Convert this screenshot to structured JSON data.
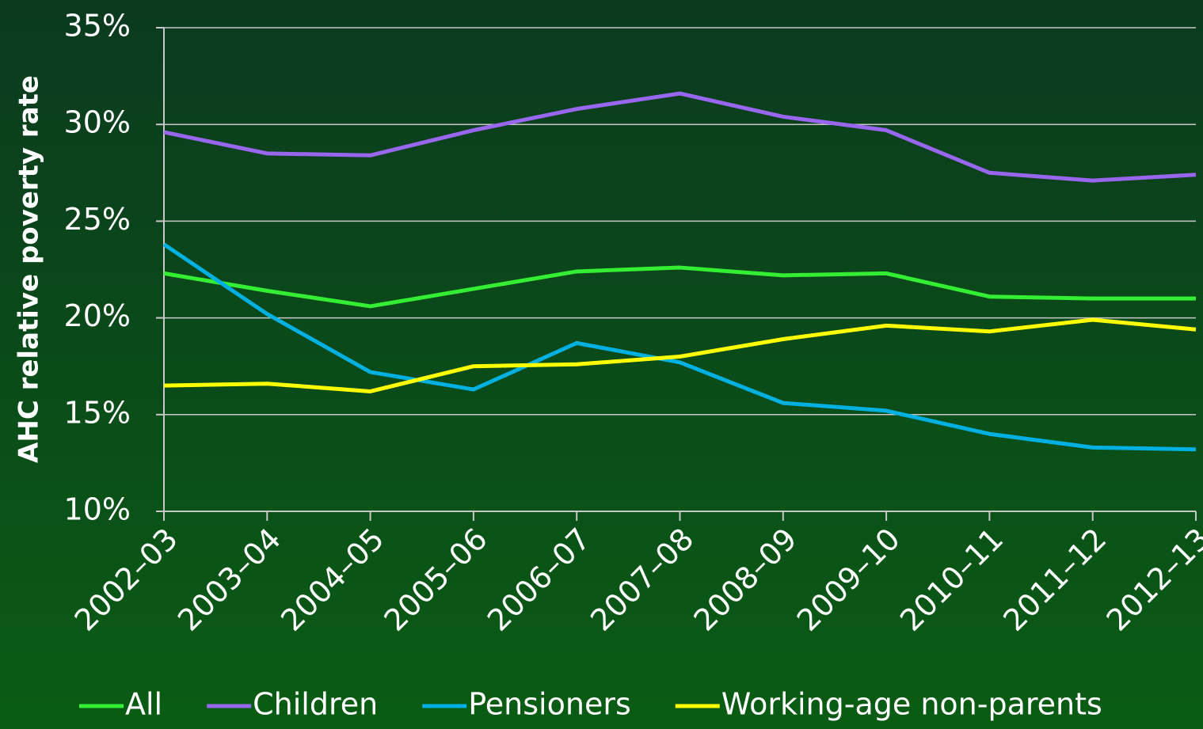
{
  "chart_data": {
    "type": "line",
    "y_label": "AHC relative poverty rate",
    "categories": [
      "2002–03",
      "2003–04",
      "2004–05",
      "2005–06",
      "2006–07",
      "2007–08",
      "2008–09",
      "2009–10",
      "2010–11",
      "2011–12",
      "2012–13"
    ],
    "series": [
      {
        "name": "All",
        "color": "#33ee33",
        "values": [
          22.3,
          21.4,
          20.6,
          21.5,
          22.4,
          22.6,
          22.2,
          22.3,
          21.1,
          21.0,
          21.0
        ]
      },
      {
        "name": "Children",
        "color": "#9966ee",
        "values": [
          29.6,
          28.5,
          28.4,
          29.7,
          30.8,
          31.6,
          30.4,
          29.7,
          27.5,
          27.1,
          27.4
        ]
      },
      {
        "name": "Pensioners",
        "color": "#00b0e0",
        "values": [
          23.8,
          20.2,
          17.2,
          16.3,
          18.7,
          17.7,
          15.6,
          15.2,
          14.0,
          13.3,
          13.2
        ]
      },
      {
        "name": "Working-age non-parents",
        "color": "#ffff00",
        "values": [
          16.5,
          16.6,
          16.2,
          17.5,
          17.6,
          18.0,
          18.9,
          19.6,
          19.3,
          19.9,
          19.4
        ]
      }
    ],
    "ylim": [
      10,
      35
    ],
    "yticks": [
      {
        "value": 10,
        "label": "10%"
      },
      {
        "value": 15,
        "label": "15%"
      },
      {
        "value": 20,
        "label": "20%"
      },
      {
        "value": 25,
        "label": "25%"
      },
      {
        "value": 30,
        "label": "30%"
      },
      {
        "value": 35,
        "label": "35%"
      }
    ],
    "grid": true
  }
}
